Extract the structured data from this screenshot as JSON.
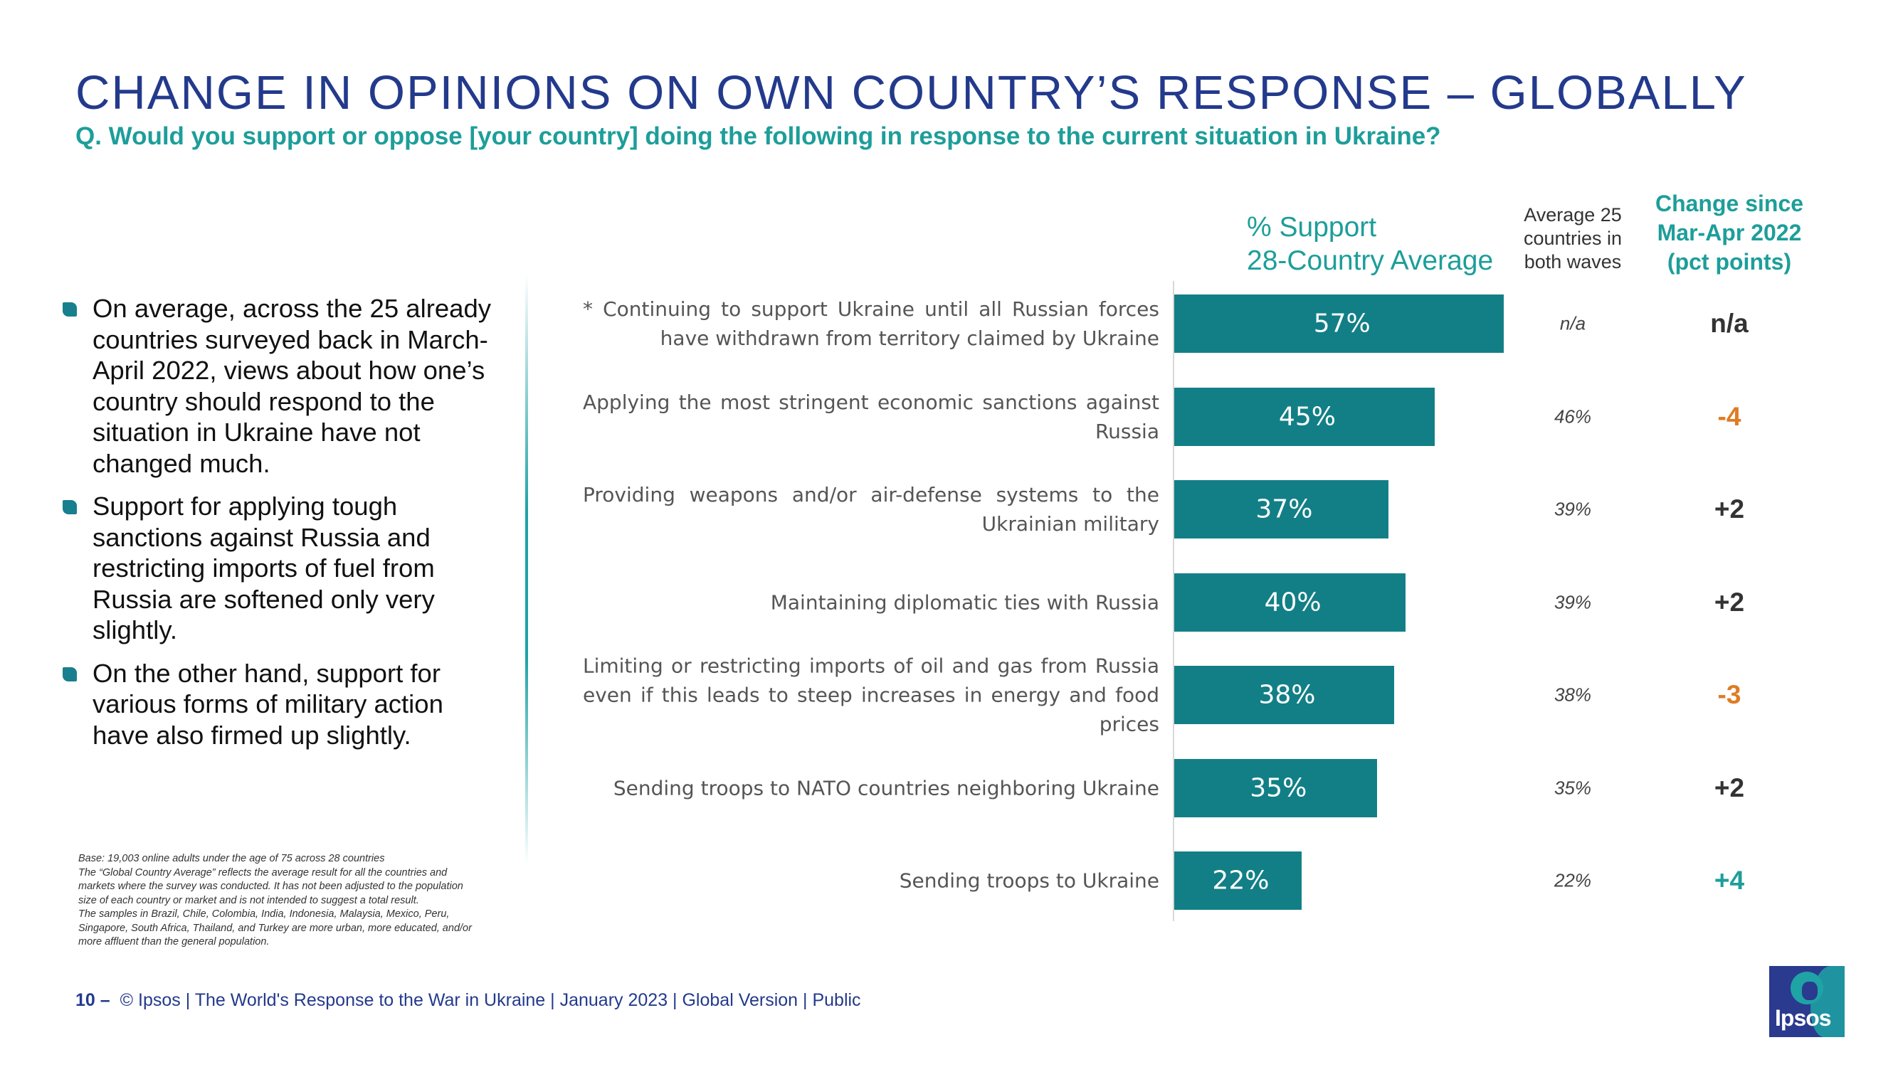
{
  "title": "CHANGE IN OPINIONS ON OWN COUNTRY’S RESPONSE – GLOBALLY",
  "question": "Q. Would you support or oppose [your country] doing the following in response to the current situation in Ukraine?",
  "bullets": [
    "On average, across the 25 already countries surveyed back in March-April 2022, views about how one’s country should respond to the situation in Ukraine have not changed much.",
    "Support for applying tough sanctions against Russia and restricting imports of fuel from Russia are softened only very slightly.",
    "On the other hand, support for various forms of military action have also firmed up slightly."
  ],
  "footnote": [
    "Base: 19,003 online adults under the age of 75 across 28 countries",
    "The “Global Country Average” reflects the average result for all the countries and markets where the survey was conducted. It has not been adjusted to the population size of each country or market and is not intended to suggest a total result.",
    "The samples in Brazil, Chile, Colombia, India, Indonesia, Malaysia, Mexico, Peru, Singapore, South Africa, Thailand, and Turkey are more urban, more educated, and/or more affluent than the general population."
  ],
  "headers": {
    "support_line1": "% Support",
    "support_line2": "28-Country Average",
    "avg_line1": "Average 25",
    "avg_line2": "countries in",
    "avg_line3": "both waves",
    "change_line1": "Change since",
    "change_line2": "Mar-Apr 2022",
    "change_line3": "(pct points)"
  },
  "colors": {
    "bar": "#127f86",
    "title": "#233a8c",
    "accent_teal": "#1d9e9a",
    "negative": "#e07b22",
    "positive": "#1d9e9a",
    "neutral": "#333333"
  },
  "chart_data": {
    "type": "bar",
    "orientation": "horizontal",
    "xlim": [
      0,
      100
    ],
    "categories": [
      "* Continuing to support Ukraine until all Russian forces have withdrawn from territory claimed by Ukraine",
      "Applying the most stringent economic sanctions against Russia",
      "Providing weapons and/or air-defense systems to the Ukrainian military",
      "Maintaining diplomatic ties with Russia",
      "Limiting or restricting imports of oil and gas from Russia even if this leads to steep increases in energy and food prices",
      "Sending troops to NATO countries neighboring Ukraine",
      "Sending troops to Ukraine"
    ],
    "values": [
      57,
      45,
      37,
      40,
      38,
      35,
      22
    ],
    "value_labels": [
      "57%",
      "45%",
      "37%",
      "40%",
      "38%",
      "35%",
      "22%"
    ],
    "average_25": [
      "n/a",
      "46%",
      "39%",
      "39%",
      "38%",
      "35%",
      "22%"
    ],
    "change": [
      "n/a",
      "-4",
      "+2",
      "+2",
      "-3",
      "+2",
      "+4"
    ],
    "change_color": [
      "neutral",
      "negative",
      "neutral",
      "neutral",
      "negative",
      "neutral",
      "positive"
    ]
  },
  "footer": {
    "page": "10 –",
    "text": "© Ipsos | The World's Response to the War in Ukraine | January 2023 | Global Version | Public"
  },
  "logo": {
    "text": "Ipsos"
  }
}
